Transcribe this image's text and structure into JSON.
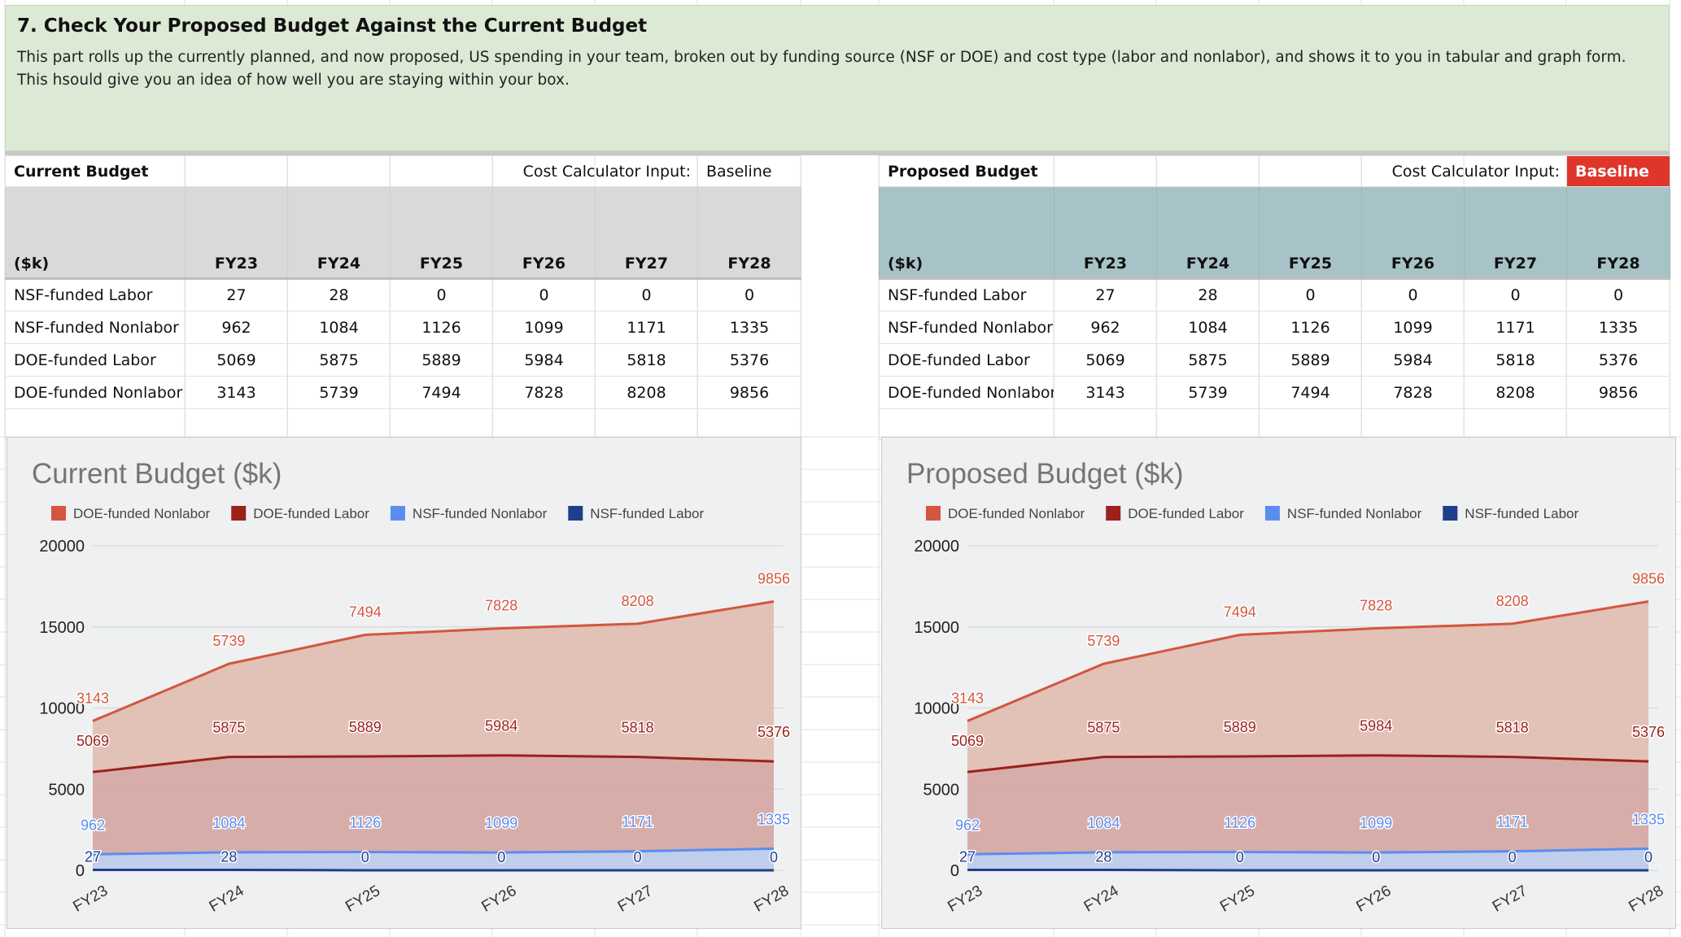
{
  "section": {
    "title": "7. Check Your Proposed Budget Against the Current Budget",
    "description": "This part rolls up the currently planned, and now proposed, US spending in your team, broken out by funding source (NSF or DOE) and cost type (labor and nonlabor),  and shows it to you in tabular and graph form.  This hsould give you an idea of how well you are staying within your box."
  },
  "current_table": {
    "title": "Current Budget",
    "calc_label": "Cost Calculator Input:",
    "calc_value": "Baseline",
    "unit_header": "($k)",
    "years": [
      "FY23",
      "FY24",
      "FY25",
      "FY26",
      "FY27",
      "FY28"
    ],
    "rows": [
      {
        "label": "NSF-funded Labor",
        "values": [
          "27",
          "28",
          "0",
          "0",
          "0",
          "0"
        ]
      },
      {
        "label": "NSF-funded Nonlabor",
        "values": [
          "962",
          "1084",
          "1126",
          "1099",
          "1171",
          "1335"
        ]
      },
      {
        "label": "DOE-funded Labor",
        "values": [
          "5069",
          "5875",
          "5889",
          "5984",
          "5818",
          "5376"
        ]
      },
      {
        "label": "DOE-funded Nonlabor",
        "values": [
          "3143",
          "5739",
          "7494",
          "7828",
          "8208",
          "9856"
        ]
      }
    ]
  },
  "proposed_table": {
    "title": "Proposed Budget",
    "calc_label": "Cost Calculator Input:",
    "calc_value": "Baseline",
    "unit_header": "($k)",
    "years": [
      "FY23",
      "FY24",
      "FY25",
      "FY26",
      "FY27",
      "FY28"
    ],
    "rows": [
      {
        "label": "NSF-funded Labor",
        "values": [
          "27",
          "28",
          "0",
          "0",
          "0",
          "0"
        ]
      },
      {
        "label": "NSF-funded Nonlabor",
        "values": [
          "962",
          "1084",
          "1126",
          "1099",
          "1171",
          "1335"
        ]
      },
      {
        "label": "DOE-funded Labor",
        "values": [
          "5069",
          "5875",
          "5889",
          "5984",
          "5818",
          "5376"
        ]
      },
      {
        "label": "DOE-funded Nonlabor",
        "values": [
          "3143",
          "5739",
          "7494",
          "7828",
          "8208",
          "9856"
        ]
      }
    ]
  },
  "colors": {
    "header_bg": "#dce9d5",
    "current_head_bg": "#d9d9d9",
    "proposed_head_bg": "#a8c3c8",
    "badge_bg": "#e0352b",
    "doe_nonlabor": "#d2573e",
    "doe_labor": "#9c211c",
    "nsf_nonlabor": "#5b8def",
    "nsf_labor": "#1f3e8c"
  },
  "chart_data": [
    {
      "type": "area",
      "stacked": true,
      "title": "Current Budget ($k)",
      "x": [
        "FY23",
        "FY24",
        "FY25",
        "FY26",
        "FY27",
        "FY28"
      ],
      "ylim": [
        0,
        20000
      ],
      "yticks": [
        0,
        5000,
        10000,
        15000,
        20000
      ],
      "legend_position": "top-left",
      "grid": true,
      "series": [
        {
          "name": "DOE-funded Nonlabor",
          "color": "#d2573e",
          "values": [
            3143,
            5739,
            7494,
            7828,
            8208,
            9856
          ]
        },
        {
          "name": "DOE-funded Labor",
          "color": "#9c211c",
          "values": [
            5069,
            5875,
            5889,
            5984,
            5818,
            5376
          ]
        },
        {
          "name": "NSF-funded Nonlabor",
          "color": "#5b8def",
          "values": [
            962,
            1084,
            1126,
            1099,
            1171,
            1335
          ]
        },
        {
          "name": "NSF-funded Labor",
          "color": "#1f3e8c",
          "values": [
            27,
            28,
            0,
            0,
            0,
            0
          ]
        }
      ]
    },
    {
      "type": "area",
      "stacked": true,
      "title": "Proposed Budget ($k)",
      "x": [
        "FY23",
        "FY24",
        "FY25",
        "FY26",
        "FY27",
        "FY28"
      ],
      "ylim": [
        0,
        20000
      ],
      "yticks": [
        0,
        5000,
        10000,
        15000,
        20000
      ],
      "legend_position": "top-left",
      "grid": true,
      "series": [
        {
          "name": "DOE-funded Nonlabor",
          "color": "#d2573e",
          "values": [
            3143,
            5739,
            7494,
            7828,
            8208,
            9856
          ]
        },
        {
          "name": "DOE-funded Labor",
          "color": "#9c211c",
          "values": [
            5069,
            5875,
            5889,
            5984,
            5818,
            5376
          ]
        },
        {
          "name": "NSF-funded Nonlabor",
          "color": "#5b8def",
          "values": [
            962,
            1084,
            1126,
            1099,
            1171,
            1335
          ]
        },
        {
          "name": "NSF-funded Labor",
          "color": "#1f3e8c",
          "values": [
            27,
            28,
            0,
            0,
            0,
            0
          ]
        }
      ]
    }
  ]
}
